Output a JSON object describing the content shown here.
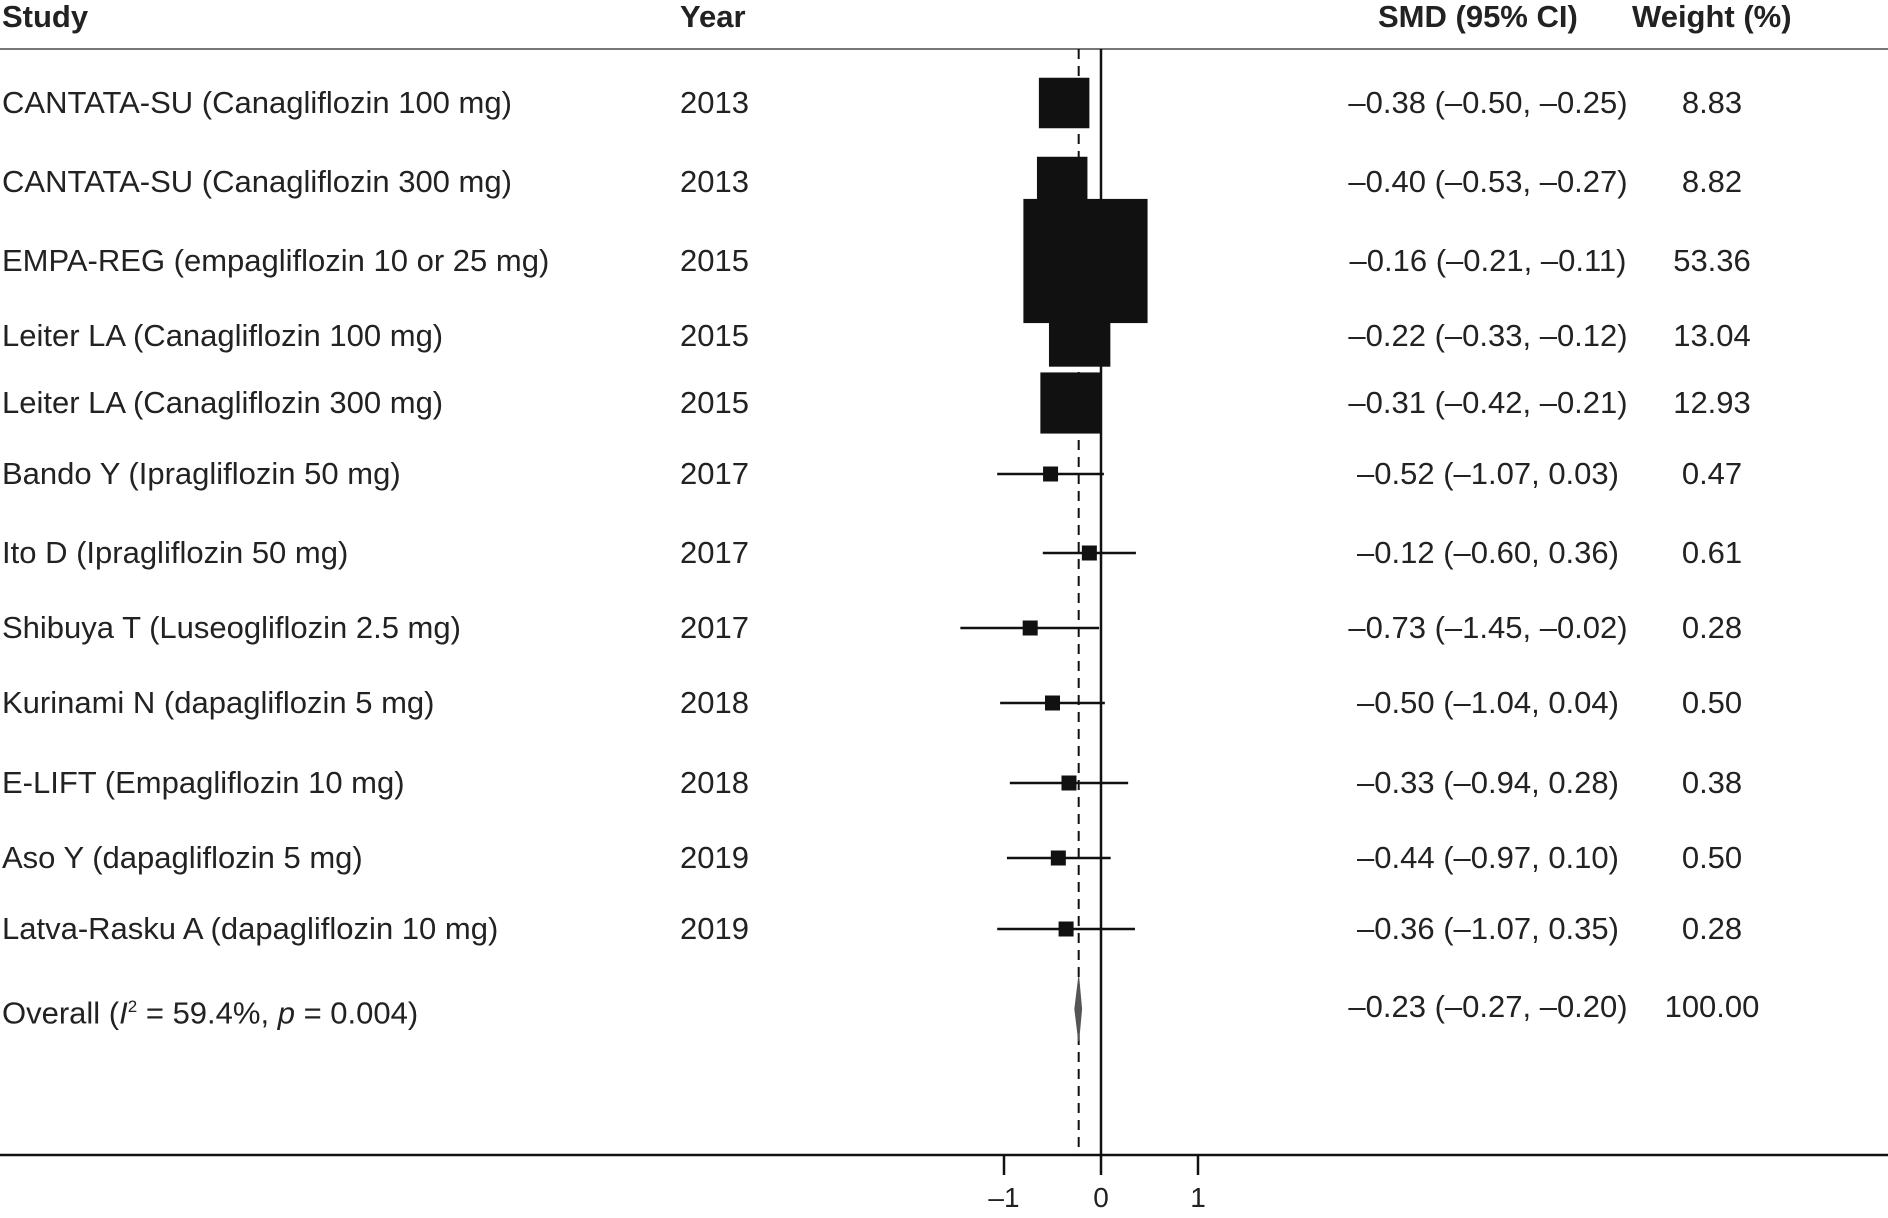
{
  "headers": {
    "study": "Study",
    "year": "Year",
    "smd": "SMD (95% CI)",
    "weight": "Weight (%)"
  },
  "overall": {
    "label_prefix": "Overall (",
    "i_symbol": "I",
    "sup": "2",
    "label_mid": " = 59.4%, ",
    "p_symbol": "p",
    "label_end": " = 0.004)",
    "ci": "–0.23 (–0.27, –0.20)",
    "weight": "100.00"
  },
  "chart_data": {
    "type": "forest",
    "x_ticks": [
      -1,
      0,
      1
    ],
    "tick_labels": [
      "–1",
      "0",
      "1"
    ],
    "null_line": 0,
    "pooled_line": -0.23,
    "studies": [
      {
        "study": "CANTATA-SU (Canagliflozin 100 mg)",
        "year": "2013",
        "smd": -0.38,
        "lower": -0.5,
        "upper": -0.25,
        "ci_text": "–0.38 (–0.50, –0.25)",
        "weight": 8.83,
        "weight_text": "8.83"
      },
      {
        "study": "CANTATA-SU (Canagliflozin 300 mg)",
        "year": "2013",
        "smd": -0.4,
        "lower": -0.53,
        "upper": -0.27,
        "ci_text": "–0.40 (–0.53, –0.27)",
        "weight": 8.82,
        "weight_text": "8.82"
      },
      {
        "study": "EMPA-REG (empagliflozin 10 or 25 mg)",
        "year": "2015",
        "smd": -0.16,
        "lower": -0.21,
        "upper": -0.11,
        "ci_text": "–0.16 (–0.21, –0.11)",
        "weight": 53.36,
        "weight_text": "53.36"
      },
      {
        "study": "Leiter LA (Canagliflozin 100 mg)",
        "year": "2015",
        "smd": -0.22,
        "lower": -0.33,
        "upper": -0.12,
        "ci_text": "–0.22 (–0.33, –0.12)",
        "weight": 13.04,
        "weight_text": "13.04"
      },
      {
        "study": "Leiter LA (Canagliflozin 300 mg)",
        "year": "2015",
        "smd": -0.31,
        "lower": -0.42,
        "upper": -0.21,
        "ci_text": "–0.31 (–0.42, –0.21)",
        "weight": 12.93,
        "weight_text": "12.93"
      },
      {
        "study": "Bando Y (Ipragliflozin 50 mg)",
        "year": "2017",
        "smd": -0.52,
        "lower": -1.07,
        "upper": 0.03,
        "ci_text": "–0.52 (–1.07, 0.03)",
        "weight": 0.47,
        "weight_text": "0.47"
      },
      {
        "study": "Ito D (Ipragliflozin 50 mg)",
        "year": "2017",
        "smd": -0.12,
        "lower": -0.6,
        "upper": 0.36,
        "ci_text": "–0.12 (–0.60, 0.36)",
        "weight": 0.61,
        "weight_text": "0.61"
      },
      {
        "study": "Shibuya T (Luseogliflozin 2.5 mg)",
        "year": "2017",
        "smd": -0.73,
        "lower": -1.45,
        "upper": -0.02,
        "ci_text": "–0.73 (–1.45, –0.02)",
        "weight": 0.28,
        "weight_text": "0.28"
      },
      {
        "study": "Kurinami N (dapagliflozin 5 mg)",
        "year": "2018",
        "smd": -0.5,
        "lower": -1.04,
        "upper": 0.04,
        "ci_text": "–0.50 (–1.04, 0.04)",
        "weight": 0.5,
        "weight_text": "0.50"
      },
      {
        "study": "E-LIFT (Empagliflozin 10 mg)",
        "year": "2018",
        "smd": -0.33,
        "lower": -0.94,
        "upper": 0.28,
        "ci_text": "–0.33 (–0.94, 0.28)",
        "weight": 0.38,
        "weight_text": "0.38"
      },
      {
        "study": "Aso Y (dapagliflozin 5 mg)",
        "year": "2019",
        "smd": -0.44,
        "lower": -0.97,
        "upper": 0.1,
        "ci_text": "–0.44 (–0.97, 0.10)",
        "weight": 0.5,
        "weight_text": "0.50"
      },
      {
        "study": "Latva-Rasku A (dapagliflozin 10 mg)",
        "year": "2019",
        "smd": -0.36,
        "lower": -1.07,
        "upper": 0.35,
        "ci_text": "–0.36 (–1.07, 0.35)",
        "weight": 0.28,
        "weight_text": "0.28"
      }
    ],
    "pooled": {
      "smd": -0.23,
      "lower": -0.27,
      "upper": -0.2,
      "weight": 100.0
    }
  }
}
